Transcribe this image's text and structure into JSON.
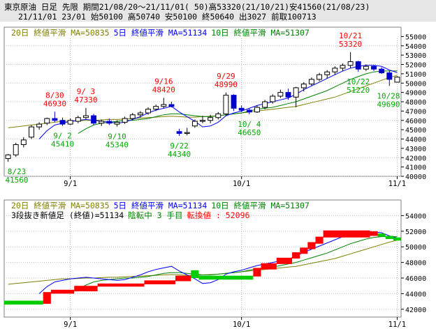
{
  "header": {
    "line1": "東京原油 日足 先限 期間21/08/20～21/11/01( 50)高53320(21/10/21)安41560(21/08/23)",
    "line2": "21/11/01 23/01 始50100 高50740 安50100 終50640 出3027 前取100713"
  },
  "colors": {
    "up": "#000000",
    "down": "#0000cc",
    "ma20": "#808000",
    "ma5": "#0000ff",
    "ma10": "#008000",
    "hi": "#ff0000",
    "lo": "#00aa00",
    "up3": "#ff0000",
    "dn3": "#00cc00"
  },
  "chart_data": [
    {
      "type": "candlestick",
      "legend": [
        {
          "label": "20日 終値平滑 MA=50835",
          "color": "#808000"
        },
        {
          "label": "5日 終値平滑 MA=51134",
          "color": "#0000ff"
        },
        {
          "label": "10日 終値平滑 MA=51307",
          "color": "#008000"
        }
      ],
      "ylim": [
        40000,
        56000
      ],
      "y_ticks": [
        40000,
        41000,
        42000,
        43000,
        44000,
        45000,
        46000,
        47000,
        48000,
        49000,
        50000,
        51000,
        52000,
        53000,
        54000,
        55000
      ],
      "x_ticks": [
        {
          "index": 8,
          "label": "9/1"
        },
        {
          "index": 30,
          "label": "10/1"
        },
        {
          "index": 50,
          "label": "11/1"
        }
      ],
      "bars": [
        {
          "o": 41900,
          "h": 42400,
          "l": 41560,
          "c": 42300
        },
        {
          "o": 42300,
          "h": 43600,
          "l": 42100,
          "c": 43400
        },
        {
          "o": 43400,
          "h": 44200,
          "l": 43100,
          "c": 43900
        },
        {
          "o": 44200,
          "h": 45500,
          "l": 44000,
          "c": 45300
        },
        {
          "o": 45300,
          "h": 45800,
          "l": 45000,
          "c": 45600
        },
        {
          "o": 45700,
          "h": 46300,
          "l": 45500,
          "c": 46200
        },
        {
          "o": 46200,
          "h": 46930,
          "l": 45800,
          "c": 46000
        },
        {
          "o": 46000,
          "h": 46300,
          "l": 45410,
          "c": 45600
        },
        {
          "o": 45600,
          "h": 46200,
          "l": 45500,
          "c": 46000
        },
        {
          "o": 45900,
          "h": 46500,
          "l": 45700,
          "c": 46300
        },
        {
          "o": 46300,
          "h": 47330,
          "l": 46100,
          "c": 46500
        },
        {
          "o": 46500,
          "h": 46700,
          "l": 45500,
          "c": 45700
        },
        {
          "o": 45700,
          "h": 46100,
          "l": 45400,
          "c": 45900
        },
        {
          "o": 45900,
          "h": 46200,
          "l": 45500,
          "c": 45700
        },
        {
          "o": 45600,
          "h": 46000,
          "l": 45340,
          "c": 45800
        },
        {
          "o": 45800,
          "h": 46400,
          "l": 45600,
          "c": 46200
        },
        {
          "o": 46200,
          "h": 46800,
          "l": 46000,
          "c": 46600
        },
        {
          "o": 46600,
          "h": 47000,
          "l": 46300,
          "c": 46800
        },
        {
          "o": 46800,
          "h": 47400,
          "l": 46600,
          "c": 47200
        },
        {
          "o": 47200,
          "h": 47700,
          "l": 47000,
          "c": 47500
        },
        {
          "o": 47500,
          "h": 48420,
          "l": 47300,
          "c": 47700
        },
        {
          "o": 47700,
          "h": 48000,
          "l": 47400,
          "c": 47500
        },
        {
          "o": 44800,
          "h": 45100,
          "l": 44340,
          "c": 44600
        },
        {
          "o": 44600,
          "h": 45200,
          "l": 44400,
          "c": 44700
        },
        {
          "o": 45400,
          "h": 46100,
          "l": 45200,
          "c": 45900
        },
        {
          "o": 45900,
          "h": 46500,
          "l": 45700,
          "c": 46000
        },
        {
          "o": 46000,
          "h": 46600,
          "l": 45700,
          "c": 46300
        },
        {
          "o": 46300,
          "h": 46900,
          "l": 46100,
          "c": 46700
        },
        {
          "o": 46700,
          "h": 48990,
          "l": 46500,
          "c": 48700
        },
        {
          "o": 48700,
          "h": 48800,
          "l": 47000,
          "c": 47300
        },
        {
          "o": 47300,
          "h": 47600,
          "l": 46900,
          "c": 47100
        },
        {
          "o": 47100,
          "h": 47300,
          "l": 46650,
          "c": 46900
        },
        {
          "o": 46900,
          "h": 47600,
          "l": 46800,
          "c": 47400
        },
        {
          "o": 47400,
          "h": 48200,
          "l": 47200,
          "c": 48000
        },
        {
          "o": 48000,
          "h": 48800,
          "l": 47800,
          "c": 48600
        },
        {
          "o": 48600,
          "h": 49300,
          "l": 48400,
          "c": 49000
        },
        {
          "o": 49000,
          "h": 49400,
          "l": 48200,
          "c": 48500
        },
        {
          "o": 48500,
          "h": 49600,
          "l": 47400,
          "c": 49500
        },
        {
          "o": 49500,
          "h": 50100,
          "l": 49100,
          "c": 49900
        },
        {
          "o": 49900,
          "h": 50600,
          "l": 49700,
          "c": 50400
        },
        {
          "o": 50400,
          "h": 51100,
          "l": 50200,
          "c": 50900
        },
        {
          "o": 50900,
          "h": 51400,
          "l": 50500,
          "c": 51200
        },
        {
          "o": 51200,
          "h": 51800,
          "l": 50900,
          "c": 51600
        },
        {
          "o": 51600,
          "h": 52100,
          "l": 51300,
          "c": 51900
        },
        {
          "o": 51900,
          "h": 53320,
          "l": 51600,
          "c": 52300
        },
        {
          "o": 52300,
          "h": 52400,
          "l": 51220,
          "c": 51500
        },
        {
          "o": 51500,
          "h": 52000,
          "l": 51300,
          "c": 51800
        },
        {
          "o": 51800,
          "h": 51900,
          "l": 51300,
          "c": 51500
        },
        {
          "o": 51500,
          "h": 51700,
          "l": 51000,
          "c": 51100
        },
        {
          "o": 51100,
          "h": 51300,
          "l": 49690,
          "c": 50400
        },
        {
          "o": 50100,
          "h": 50740,
          "l": 50100,
          "c": 50640
        }
      ],
      "ma5": [
        null,
        null,
        null,
        null,
        44000,
        44900,
        45500,
        45700,
        45900,
        46000,
        46100,
        46000,
        45900,
        45800,
        45700,
        45800,
        46100,
        46400,
        46800,
        47100,
        47300,
        47500,
        46900,
        46400,
        45900,
        45300,
        45400,
        45800,
        46500,
        46800,
        47000,
        47300,
        47600,
        47800,
        48000,
        48200,
        48400,
        48800,
        49300,
        49700,
        50100,
        50500,
        50900,
        51300,
        51600,
        51800,
        51900,
        51900,
        51800,
        51400,
        51134
      ],
      "ma10": [
        null,
        null,
        null,
        null,
        null,
        null,
        null,
        null,
        null,
        44600,
        45100,
        45500,
        45700,
        45800,
        45900,
        46000,
        46000,
        46100,
        46200,
        46400,
        46600,
        46700,
        46700,
        46600,
        46500,
        46400,
        46400,
        46500,
        46600,
        46700,
        46800,
        47000,
        47200,
        47300,
        47400,
        47600,
        47800,
        48000,
        48300,
        48600,
        48900,
        49200,
        49600,
        50000,
        50400,
        50700,
        51000,
        51200,
        51300,
        51300,
        51307
      ],
      "ma20": [
        45200,
        45300,
        45400,
        45500,
        45600,
        45700,
        45800,
        45900,
        45900,
        45950,
        46000,
        46000,
        46050,
        46100,
        46100,
        46150,
        46200,
        46250,
        46300,
        46350,
        46400,
        46450,
        46400,
        46350,
        46350,
        46400,
        46450,
        46500,
        46600,
        46700,
        46800,
        46900,
        47000,
        47100,
        47200,
        47300,
        47400,
        47500,
        47700,
        47900,
        48100,
        48300,
        48500,
        48800,
        49100,
        49400,
        49700,
        50000,
        50300,
        50600,
        50835
      ],
      "annotations": [
        {
          "index": 0,
          "date": "8/23",
          "value": "41560",
          "kind": "lo"
        },
        {
          "index": 6,
          "date": "8/30",
          "value": "46930",
          "kind": "hi"
        },
        {
          "index": 7,
          "date": "9/ 2",
          "value": "45410",
          "kind": "lo"
        },
        {
          "index": 10,
          "date": "9/ 3",
          "value": "47330",
          "kind": "hi"
        },
        {
          "index": 14,
          "date": "9/10",
          "value": "45340",
          "kind": "lo"
        },
        {
          "index": 20,
          "date": "9/16",
          "value": "48420",
          "kind": "hi"
        },
        {
          "index": 22,
          "date": "9/22",
          "value": "44340",
          "kind": "lo"
        },
        {
          "index": 28,
          "date": "9/29",
          "value": "48990",
          "kind": "hi"
        },
        {
          "index": 31,
          "date": "10/ 4",
          "value": "46650",
          "kind": "lo"
        },
        {
          "index": 44,
          "date": "10/21",
          "value": "53320",
          "kind": "hi"
        },
        {
          "index": 45,
          "date": "10/22",
          "value": "51220",
          "kind": "lo"
        },
        {
          "index": 49,
          "date": "10/28",
          "value": "49690",
          "kind": "lo"
        }
      ]
    },
    {
      "type": "three-line-break",
      "legend": [
        {
          "label": "20日 終値平滑 MA=50835",
          "color": "#808000"
        },
        {
          "label": "5日 終値平滑 MA=51134",
          "color": "#0000ff"
        },
        {
          "label": "10日 終値平滑 MA=51307",
          "color": "#008000"
        }
      ],
      "info": [
        {
          "label": "3段抜き新値足 (終値)=51134",
          "color": "#000000"
        },
        {
          "label": "陰転中  3 手目",
          "color": "#008000"
        },
        {
          "label": "転換値 : 52096",
          "color": "#ff0000"
        }
      ],
      "ylim": [
        41000,
        56000
      ],
      "y_ticks": [
        42000,
        44000,
        46000,
        48000,
        50000,
        52000,
        54000
      ],
      "x_ticks": [
        {
          "index": 8,
          "label": "9/1"
        },
        {
          "index": 30,
          "label": "10/1"
        },
        {
          "index": 50,
          "label": "11/1"
        }
      ],
      "blocks": [
        {
          "s": 0,
          "e": 4,
          "lo": 42600,
          "hi": 43100,
          "dir": "down"
        },
        {
          "s": 5,
          "e": 5,
          "lo": 42700,
          "hi": 44200,
          "dir": "up"
        },
        {
          "s": 6,
          "e": 8,
          "lo": 44000,
          "hi": 44500,
          "dir": "up"
        },
        {
          "s": 9,
          "e": 11,
          "lo": 44300,
          "hi": 45000,
          "dir": "up"
        },
        {
          "s": 12,
          "e": 17,
          "lo": 44900,
          "hi": 45300,
          "dir": "up"
        },
        {
          "s": 18,
          "e": 21,
          "lo": 45200,
          "hi": 45700,
          "dir": "up"
        },
        {
          "s": 22,
          "e": 23,
          "lo": 45600,
          "hi": 46300,
          "dir": "up"
        },
        {
          "s": 24,
          "e": 24,
          "lo": 46000,
          "hi": 47000,
          "dir": "down"
        },
        {
          "s": 25,
          "e": 31,
          "lo": 45800,
          "hi": 46300,
          "dir": "down"
        },
        {
          "s": 32,
          "e": 32,
          "lo": 46200,
          "hi": 47300,
          "dir": "up"
        },
        {
          "s": 33,
          "e": 34,
          "lo": 47100,
          "hi": 47900,
          "dir": "up"
        },
        {
          "s": 35,
          "e": 36,
          "lo": 47800,
          "hi": 48600,
          "dir": "up"
        },
        {
          "s": 37,
          "e": 37,
          "lo": 48500,
          "hi": 49300,
          "dir": "up"
        },
        {
          "s": 38,
          "e": 38,
          "lo": 49100,
          "hi": 49900,
          "dir": "up"
        },
        {
          "s": 39,
          "e": 39,
          "lo": 49700,
          "hi": 50600,
          "dir": "up"
        },
        {
          "s": 40,
          "e": 40,
          "lo": 50400,
          "hi": 51300,
          "dir": "up"
        },
        {
          "s": 41,
          "e": 46,
          "lo": 51200,
          "hi": 52100,
          "dir": "up"
        },
        {
          "s": 47,
          "e": 47,
          "lo": 51400,
          "hi": 52000,
          "dir": "up"
        },
        {
          "s": 48,
          "e": 48,
          "lo": 51300,
          "hi": 51700,
          "dir": "down"
        },
        {
          "s": 49,
          "e": 49,
          "lo": 51000,
          "hi": 51400,
          "dir": "down"
        },
        {
          "s": 50,
          "e": 50,
          "lo": 50800,
          "hi": 51200,
          "dir": "down"
        }
      ]
    }
  ]
}
